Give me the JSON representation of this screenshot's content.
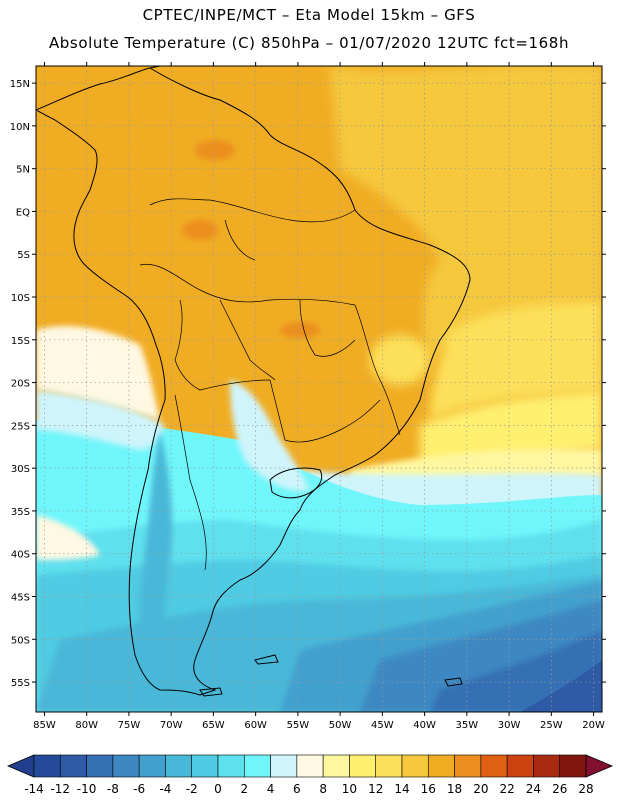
{
  "header": {
    "line1": "CPTEC/INPE/MCT –  Eta Model 15km – GFS",
    "line2": "Absolute Temperature (C) 850hPa – 01/07/2020 12UTC fct=168h"
  },
  "map": {
    "lon_range": [
      -86,
      -19
    ],
    "lat_range": [
      -58.5,
      17
    ],
    "lat_ticks": [
      {
        "value": 15,
        "label": "15N"
      },
      {
        "value": 10,
        "label": "10N"
      },
      {
        "value": 5,
        "label": "5N"
      },
      {
        "value": 0,
        "label": "EQ"
      },
      {
        "value": -5,
        "label": "5S"
      },
      {
        "value": -10,
        "label": "10S"
      },
      {
        "value": -15,
        "label": "15S"
      },
      {
        "value": -20,
        "label": "20S"
      },
      {
        "value": -25,
        "label": "25S"
      },
      {
        "value": -30,
        "label": "30S"
      },
      {
        "value": -35,
        "label": "35S"
      },
      {
        "value": -40,
        "label": "40S"
      },
      {
        "value": -45,
        "label": "45S"
      },
      {
        "value": -50,
        "label": "50S"
      },
      {
        "value": -55,
        "label": "55S"
      }
    ],
    "lon_ticks": [
      {
        "value": -85,
        "label": "85W"
      },
      {
        "value": -80,
        "label": "80W"
      },
      {
        "value": -75,
        "label": "75W"
      },
      {
        "value": -70,
        "label": "70W"
      },
      {
        "value": -65,
        "label": "65W"
      },
      {
        "value": -60,
        "label": "60W"
      },
      {
        "value": -55,
        "label": "55W"
      },
      {
        "value": -50,
        "label": "50W"
      },
      {
        "value": -45,
        "label": "45W"
      },
      {
        "value": -40,
        "label": "40W"
      },
      {
        "value": -35,
        "label": "35W"
      },
      {
        "value": -30,
        "label": "30W"
      },
      {
        "value": -25,
        "label": "25W"
      },
      {
        "value": -20,
        "label": "20W"
      }
    ]
  },
  "colorbar": {
    "labels": [
      "-14",
      "-12",
      "-10",
      "-8",
      "-6",
      "-4",
      "-2",
      "0",
      "2",
      "4",
      "6",
      "8",
      "10",
      "12",
      "14",
      "16",
      "18",
      "20",
      "22",
      "24",
      "26",
      "28"
    ],
    "colors": [
      "#233e8e",
      "#254a9a",
      "#2e5aa6",
      "#3670b4",
      "#3e88c2",
      "#43a0ce",
      "#48b8d8",
      "#50cbe3",
      "#5ee0ee",
      "#6ff6fa",
      "#cff4fb",
      "#fff8e2",
      "#fff7a0",
      "#fff070",
      "#fde05a",
      "#f5c83e",
      "#f0ad24",
      "#ec8f1e",
      "#e06014",
      "#cc4210",
      "#a82a10",
      "#80160e",
      "#800f30"
    ]
  }
}
